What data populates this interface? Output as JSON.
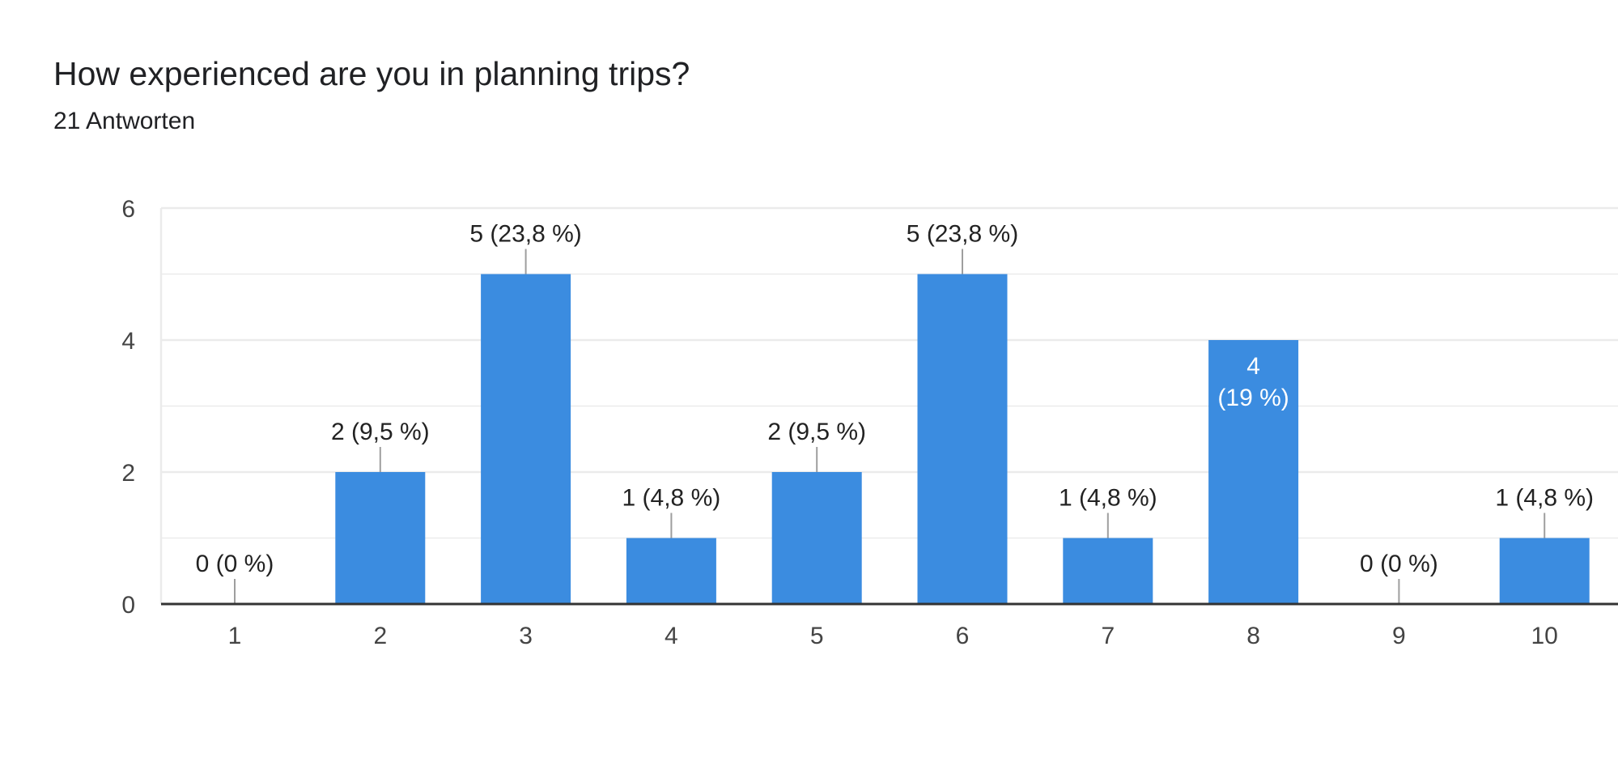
{
  "header": {
    "question": "How experienced are you in planning trips?",
    "responses": "21 Antworten"
  },
  "colors": {
    "bar": "#3b8ce0",
    "grid": "#ebebeb",
    "axis": "#333333",
    "leader": "#9e9e9e"
  },
  "chart_data": {
    "type": "bar",
    "title": "How experienced are you in planning trips?",
    "categories": [
      "1",
      "2",
      "3",
      "4",
      "5",
      "6",
      "7",
      "8",
      "9",
      "10"
    ],
    "values": [
      0,
      2,
      5,
      1,
      2,
      5,
      1,
      4,
      0,
      1
    ],
    "labels": [
      "0 (0 %)",
      "2 (9,5 %)",
      "5 (23,8 %)",
      "1 (4,8 %)",
      "2 (9,5 %)",
      "5 (23,8 %)",
      "1 (4,8 %)",
      "4",
      "0 (0 %)",
      "1 (4,8 %)"
    ],
    "label_second_lines": [
      "",
      "",
      "",
      "",
      "",
      "",
      "",
      "(19 %)",
      "",
      ""
    ],
    "yticks": [
      "0",
      "2",
      "4",
      "6"
    ],
    "ylim": [
      0,
      6
    ],
    "xlabel": "",
    "ylabel": "",
    "grid": true,
    "legend": "none"
  }
}
